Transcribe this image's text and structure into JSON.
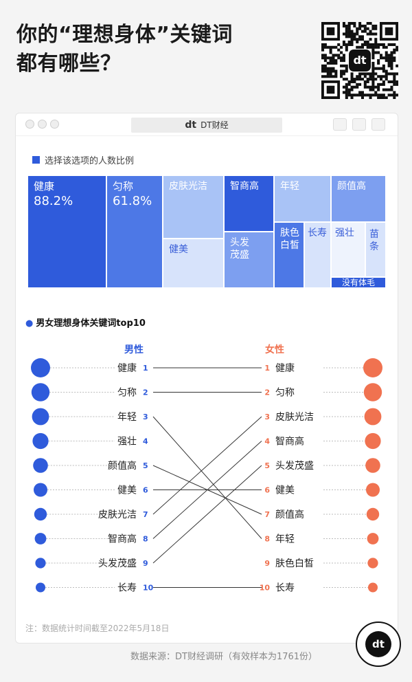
{
  "header": {
    "title_line1": "你的“理想身体”关键词",
    "title_line2": "都有哪些？"
  },
  "window": {
    "tab_logo": "dt",
    "tab_title": "DT财经"
  },
  "treemap": {
    "legend": "选择该选项的人数比例",
    "colors": {
      "dark": "#2f5bdb",
      "mid": "#4d78e6",
      "light": "#a9c3f6",
      "pale": "#d7e3fb",
      "soft": "#7d9ff0"
    }
  },
  "slope": {
    "section_title": "男女理想身体关键词top10",
    "male_header": "男性",
    "female_header": "女性",
    "male_color": "#2f5bdb",
    "female_color": "#f07250"
  },
  "chart_data": [
    {
      "type": "treemap",
      "title": "选择该选项的人数比例",
      "categories": [
        "健康",
        "匀称",
        "皮肤光洁",
        "健美",
        "智商高",
        "头发茂盛",
        "年轻",
        "肤色白皙",
        "长寿",
        "颜值高",
        "强壮",
        "苗条",
        "没有体毛"
      ],
      "values": [
        88.2,
        61.8,
        null,
        null,
        null,
        null,
        null,
        null,
        null,
        null,
        null,
        null,
        null
      ],
      "value_labels": [
        "88.2%",
        "61.8%"
      ]
    },
    {
      "type": "slope",
      "title": "男女理想身体关键词top10",
      "series": [
        {
          "name": "男性",
          "ranks": [
            1,
            2,
            3,
            4,
            5,
            6,
            7,
            8,
            9,
            10
          ],
          "labels": [
            "健康",
            "匀称",
            "年轻",
            "强壮",
            "颜值高",
            "健美",
            "皮肤光洁",
            "智商高",
            "头发茂盛",
            "长寿"
          ]
        },
        {
          "name": "女性",
          "ranks": [
            1,
            2,
            3,
            4,
            5,
            6,
            7,
            8,
            9,
            10
          ],
          "labels": [
            "健康",
            "匀称",
            "皮肤光洁",
            "智商高",
            "头发茂盛",
            "健美",
            "颜值高",
            "年轻",
            "肤色白皙",
            "长寿"
          ]
        }
      ]
    }
  ],
  "footer": {
    "note": "注：数据统计时间截至2022年5月18日",
    "source": "数据来源：DT财经调研（有效样本为1761份）",
    "fab_logo": "dt"
  }
}
